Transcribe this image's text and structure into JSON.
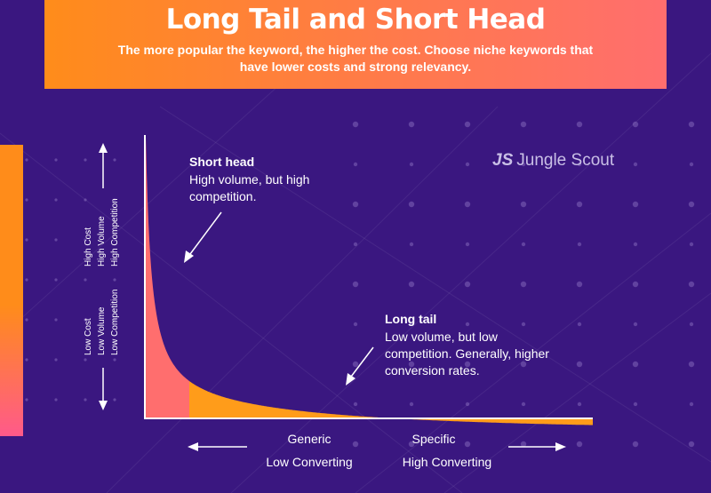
{
  "banner": {
    "title": "Long Tail and Short Head",
    "subtitle": "The more popular the keyword, the higher the cost. Choose niche keywords that have lower costs and strong relevancy."
  },
  "logo": {
    "mark": "JS",
    "text": "Jungle Scout"
  },
  "colors": {
    "background": "#3a1780",
    "banner_start": "#ff8c1a",
    "banner_end": "#ff6e6e",
    "short_head_fill": "#ff6e6e",
    "long_tail_fill": "#ff9c1a",
    "axis": "#ffffff"
  },
  "chart_data": {
    "type": "area",
    "xlabel": "",
    "ylabel": "",
    "grid": false,
    "y_axis": {
      "top_labels": [
        "High Cost",
        "High Volume",
        "High Competition"
      ],
      "bottom_labels": [
        "Low Cost",
        "Low Volume",
        "Low Competition"
      ]
    },
    "x_axis": {
      "left_labels": [
        "Generic",
        "Low Converting"
      ],
      "right_labels": [
        "Specific",
        "High Converting"
      ]
    },
    "regions": [
      {
        "title": "Short head",
        "description": "High volume, but high competition."
      },
      {
        "title": "Long tail",
        "description": "Low volume, but low competition. Generally, higher conversion rates."
      }
    ]
  }
}
